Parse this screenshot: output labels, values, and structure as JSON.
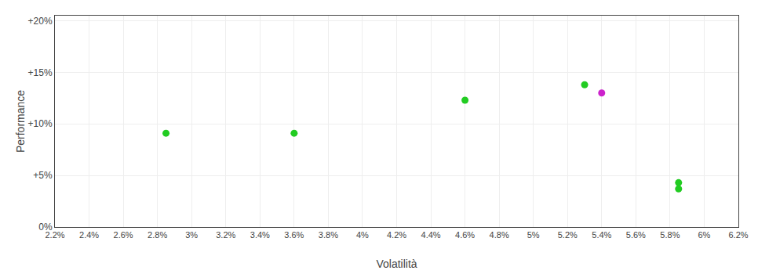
{
  "chart_data": {
    "type": "scatter",
    "xlabel": "Volatilità",
    "ylabel": "Performance",
    "x": [
      0.0285,
      0.036,
      0.046,
      0.053,
      0.054,
      0.0585,
      0.0585
    ],
    "values": [
      0.091,
      0.091,
      0.123,
      0.138,
      0.13,
      0.043,
      0.037
    ],
    "colors": [
      "#22cc22",
      "#22cc22",
      "#22cc22",
      "#22cc22",
      "#cc22cc",
      "#22cc22",
      "#22cc22"
    ],
    "xlim": [
      0.022,
      0.062
    ],
    "ylim": [
      0.0,
      0.205
    ],
    "xticks": [
      {
        "value": 0.022,
        "label": "2.2%"
      },
      {
        "value": 0.024,
        "label": "2.4%"
      },
      {
        "value": 0.026,
        "label": "2.6%"
      },
      {
        "value": 0.028,
        "label": "2.8%"
      },
      {
        "value": 0.03,
        "label": "3%"
      },
      {
        "value": 0.032,
        "label": "3.2%"
      },
      {
        "value": 0.034,
        "label": "3.4%"
      },
      {
        "value": 0.036,
        "label": "3.6%"
      },
      {
        "value": 0.038,
        "label": "3.8%"
      },
      {
        "value": 0.04,
        "label": "4%"
      },
      {
        "value": 0.042,
        "label": "4.2%"
      },
      {
        "value": 0.044,
        "label": "4.4%"
      },
      {
        "value": 0.046,
        "label": "4.6%"
      },
      {
        "value": 0.048,
        "label": "4.8%"
      },
      {
        "value": 0.05,
        "label": "5%"
      },
      {
        "value": 0.052,
        "label": "5.2%"
      },
      {
        "value": 0.054,
        "label": "5.4%"
      },
      {
        "value": 0.056,
        "label": "5.6%"
      },
      {
        "value": 0.058,
        "label": "5.8%"
      },
      {
        "value": 0.06,
        "label": "6%"
      },
      {
        "value": 0.062,
        "label": "6.2%"
      }
    ],
    "yticks": [
      {
        "value": 0.0,
        "label": "0%"
      },
      {
        "value": 0.05,
        "label": "+5%"
      },
      {
        "value": 0.1,
        "label": "+10%"
      },
      {
        "value": 0.15,
        "label": "+15%"
      },
      {
        "value": 0.2,
        "label": "+20%"
      }
    ],
    "grid": true
  }
}
